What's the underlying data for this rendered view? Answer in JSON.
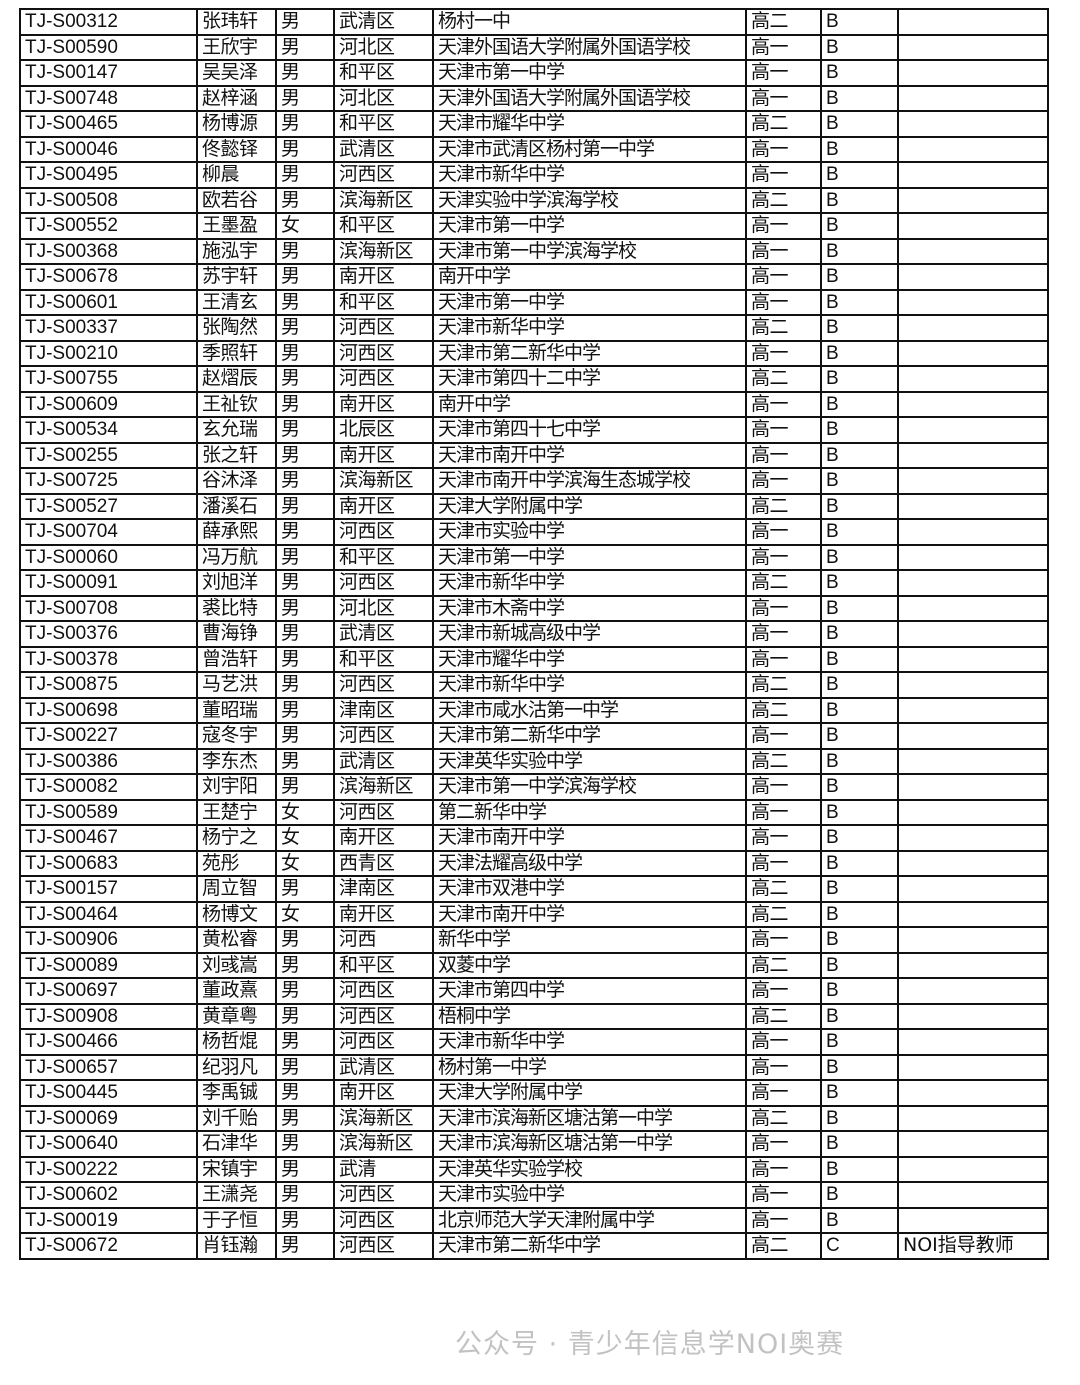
{
  "watermark": "公众号 · 青少年信息学NOI奥赛",
  "rows": [
    [
      "TJ-S00312",
      "张玮轩",
      "男",
      "武清区",
      "杨村一中",
      "高二",
      "B",
      ""
    ],
    [
      "TJ-S00590",
      "王欣宇",
      "男",
      "河北区",
      "天津外国语大学附属外国语学校",
      "高一",
      "B",
      ""
    ],
    [
      "TJ-S00147",
      "吴吴泽",
      "男",
      "和平区",
      "天津市第一中学",
      "高一",
      "B",
      ""
    ],
    [
      "TJ-S00748",
      "赵梓涵",
      "男",
      "河北区",
      "天津外国语大学附属外国语学校",
      "高一",
      "B",
      ""
    ],
    [
      "TJ-S00465",
      "杨博源",
      "男",
      "和平区",
      "天津市耀华中学",
      "高二",
      "B",
      ""
    ],
    [
      "TJ-S00046",
      "佟懿铎",
      "男",
      "武清区",
      "天津市武清区杨村第一中学",
      "高一",
      "B",
      ""
    ],
    [
      "TJ-S00495",
      "柳晨",
      "男",
      "河西区",
      "天津市新华中学",
      "高一",
      "B",
      ""
    ],
    [
      "TJ-S00508",
      "欧若谷",
      "男",
      "滨海新区",
      "天津实验中学滨海学校",
      "高二",
      "B",
      ""
    ],
    [
      "TJ-S00552",
      "王墨盈",
      "女",
      "和平区",
      "天津市第一中学",
      "高一",
      "B",
      ""
    ],
    [
      "TJ-S00368",
      "施泓宇",
      "男",
      "滨海新区",
      "天津市第一中学滨海学校",
      "高一",
      "B",
      ""
    ],
    [
      "TJ-S00678",
      "苏宇轩",
      "男",
      "南开区",
      "南开中学",
      "高一",
      "B",
      ""
    ],
    [
      "TJ-S00601",
      "王清玄",
      "男",
      "和平区",
      "天津市第一中学",
      "高一",
      "B",
      ""
    ],
    [
      "TJ-S00337",
      "张陶然",
      "男",
      "河西区",
      "天津市新华中学",
      "高二",
      "B",
      ""
    ],
    [
      "TJ-S00210",
      "季照轩",
      "男",
      "河西区",
      "天津市第二新华中学",
      "高一",
      "B",
      ""
    ],
    [
      "TJ-S00755",
      "赵熠辰",
      "男",
      "河西区",
      "天津市第四十二中学",
      "高二",
      "B",
      ""
    ],
    [
      "TJ-S00609",
      "王祉钦",
      "男",
      "南开区",
      "南开中学",
      "高一",
      "B",
      ""
    ],
    [
      "TJ-S00534",
      "玄允瑞",
      "男",
      "北辰区",
      "天津市第四十七中学",
      "高一",
      "B",
      ""
    ],
    [
      "TJ-S00255",
      "张之轩",
      "男",
      "南开区",
      "天津市南开中学",
      "高一",
      "B",
      ""
    ],
    [
      "TJ-S00725",
      "谷沐泽",
      "男",
      "滨海新区",
      "天津市南开中学滨海生态城学校",
      "高一",
      "B",
      ""
    ],
    [
      "TJ-S00527",
      "潘溪石",
      "男",
      "南开区",
      "天津大学附属中学",
      "高二",
      "B",
      ""
    ],
    [
      "TJ-S00704",
      "薛承熙",
      "男",
      "河西区",
      "天津市实验中学",
      "高一",
      "B",
      ""
    ],
    [
      "TJ-S00060",
      "冯万航",
      "男",
      "和平区",
      "天津市第一中学",
      "高一",
      "B",
      ""
    ],
    [
      "TJ-S00091",
      "刘旭洋",
      "男",
      "河西区",
      "天津市新华中学",
      "高二",
      "B",
      ""
    ],
    [
      "TJ-S00708",
      "裘比特",
      "男",
      "河北区",
      "天津市木斋中学",
      "高一",
      "B",
      ""
    ],
    [
      "TJ-S00376",
      "曹海铮",
      "男",
      "武清区",
      "天津市新城高级中学",
      "高一",
      "B",
      ""
    ],
    [
      "TJ-S00378",
      "曾浩轩",
      "男",
      "和平区",
      "天津市耀华中学",
      "高一",
      "B",
      ""
    ],
    [
      "TJ-S00875",
      "马艺洪",
      "男",
      "河西区",
      "天津市新华中学",
      "高二",
      "B",
      ""
    ],
    [
      "TJ-S00698",
      "董昭瑞",
      "男",
      "津南区",
      "天津市咸水沽第一中学",
      "高二",
      "B",
      ""
    ],
    [
      "TJ-S00227",
      "寇冬宇",
      "男",
      "河西区",
      "天津市第二新华中学",
      "高一",
      "B",
      ""
    ],
    [
      "TJ-S00386",
      "李东杰",
      "男",
      "武清区",
      "天津英华实验中学",
      "高二",
      "B",
      ""
    ],
    [
      "TJ-S00082",
      "刘宇阳",
      "男",
      "滨海新区",
      "天津市第一中学滨海学校",
      "高一",
      "B",
      ""
    ],
    [
      "TJ-S00589",
      "王楚宁",
      "女",
      "河西区",
      "第二新华中学",
      "高一",
      "B",
      ""
    ],
    [
      "TJ-S00467",
      "杨宁之",
      "女",
      "南开区",
      "天津市南开中学",
      "高一",
      "B",
      ""
    ],
    [
      "TJ-S00683",
      "苑彤",
      "女",
      "西青区",
      "天津法耀高级中学",
      "高一",
      "B",
      ""
    ],
    [
      "TJ-S00157",
      "周立智",
      "男",
      "津南区",
      "天津市双港中学",
      "高二",
      "B",
      ""
    ],
    [
      "TJ-S00464",
      "杨博文",
      "女",
      "南开区",
      "天津市南开中学",
      "高二",
      "B",
      ""
    ],
    [
      "TJ-S00906",
      "黄松睿",
      "男",
      "河西",
      "新华中学",
      "高一",
      "B",
      ""
    ],
    [
      "TJ-S00089",
      "刘彧嵩",
      "男",
      "和平区",
      "双菱中学",
      "高二",
      "B",
      ""
    ],
    [
      "TJ-S00697",
      "董政熹",
      "男",
      "河西区",
      "天津市第四中学",
      "高一",
      "B",
      ""
    ],
    [
      "TJ-S00908",
      "黄章粤",
      "男",
      "河西区",
      "梧桐中学",
      "高二",
      "B",
      ""
    ],
    [
      "TJ-S00466",
      "杨哲焜",
      "男",
      "河西区",
      "天津市新华中学",
      "高一",
      "B",
      ""
    ],
    [
      "TJ-S00657",
      "纪羽凡",
      "男",
      "武清区",
      "杨村第一中学",
      "高一",
      "B",
      ""
    ],
    [
      "TJ-S00445",
      "李禹铖",
      "男",
      "南开区",
      "天津大学附属中学",
      "高一",
      "B",
      ""
    ],
    [
      "TJ-S00069",
      "刘千贻",
      "男",
      "滨海新区",
      "天津市滨海新区塘沽第一中学",
      "高二",
      "B",
      ""
    ],
    [
      "TJ-S00640",
      "石津华",
      "男",
      "滨海新区",
      "天津市滨海新区塘沽第一中学",
      "高一",
      "B",
      ""
    ],
    [
      "TJ-S00222",
      "宋镇宇",
      "男",
      "武清",
      "天津英华实验学校",
      "高一",
      "B",
      ""
    ],
    [
      "TJ-S00602",
      "王潇尧",
      "男",
      "河西区",
      "天津市实验中学",
      "高一",
      "B",
      ""
    ],
    [
      "TJ-S00019",
      "于子恒",
      "男",
      "河西区",
      "北京师范大学天津附属中学",
      "高一",
      "B",
      ""
    ],
    [
      "TJ-S00672",
      "肖钰瀚",
      "男",
      "河西区",
      "天津市第二新华中学",
      "高二",
      "C",
      "NOI指导教师"
    ]
  ]
}
